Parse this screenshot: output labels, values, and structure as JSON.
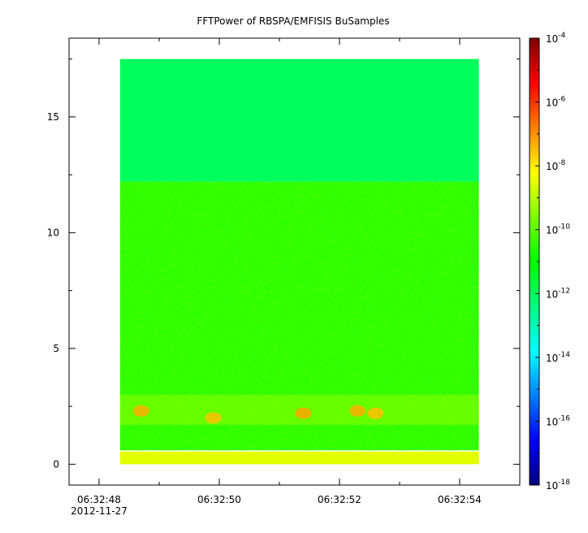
{
  "chart_data": {
    "type": "heatmap",
    "title": "FFTPower of RBSPA/EMFISIS  BuSamples",
    "xlabel": "",
    "ylabel": "",
    "x_axis": {
      "range_seconds": [
        "06:32:47.5",
        "06:32:55.0"
      ],
      "ticks": [
        {
          "time": "06:32:48",
          "label": "06:32:48",
          "date": "2012-11-27"
        },
        {
          "time": "06:32:50",
          "label": "06:32:50",
          "date": ""
        },
        {
          "time": "06:32:52",
          "label": "06:32:52",
          "date": ""
        },
        {
          "time": "06:32:54",
          "label": "06:32:54",
          "date": ""
        }
      ],
      "minor_ticks": [
        "06:32:49",
        "06:32:51",
        "06:32:53",
        "06:32:55"
      ]
    },
    "y_axis": {
      "range": [
        -0.9,
        18.4
      ],
      "ticks": [
        0,
        5,
        10,
        15
      ],
      "labels": [
        "0",
        "5",
        "10",
        "15"
      ]
    },
    "data_extent": {
      "x": [
        "06:32:48.35",
        "06:32:54.32"
      ],
      "y": [
        0,
        17.5
      ]
    },
    "colorbar": {
      "scale": "log",
      "range": [
        1e-18,
        0.0001
      ],
      "colormap": [
        "#00007f",
        "#0000ff",
        "#007fff",
        "#00ffff",
        "#00ff7f",
        "#00ff00",
        "#7fff00",
        "#ffff00",
        "#ff7f00",
        "#ff0000",
        "#7f0000"
      ],
      "ticks": [
        {
          "mantissa": "10",
          "exponent": "-4"
        },
        {
          "mantissa": "10",
          "exponent": "-6"
        },
        {
          "mantissa": "10",
          "exponent": "-8"
        },
        {
          "mantissa": "10",
          "exponent": "-10"
        },
        {
          "mantissa": "10",
          "exponent": "-12"
        },
        {
          "mantissa": "10",
          "exponent": "-14"
        },
        {
          "mantissa": "10",
          "exponent": "-16"
        },
        {
          "mantissa": "10",
          "exponent": "-18"
        }
      ]
    },
    "bands": [
      {
        "y_range": [
          12.2,
          17.5
        ],
        "log_power": -12.0,
        "description": "upper band"
      },
      {
        "y_range": [
          0.6,
          12.2
        ],
        "log_power": -10.5,
        "description": "main band"
      },
      {
        "y_range": [
          0,
          0.55
        ],
        "log_power": -8.5,
        "description": "low frequency band"
      }
    ],
    "enhancements": [
      {
        "time": "06:32:48.7",
        "y": 2.3,
        "log_power": -7.3
      },
      {
        "time": "06:32:49.9",
        "y": 2.0,
        "log_power": -7.5
      },
      {
        "time": "06:32:51.4",
        "y": 2.2,
        "log_power": -7.2
      },
      {
        "time": "06:32:52.3",
        "y": 2.3,
        "log_power": -7.3
      },
      {
        "time": "06:32:52.6",
        "y": 2.2,
        "log_power": -7.5
      }
    ]
  }
}
